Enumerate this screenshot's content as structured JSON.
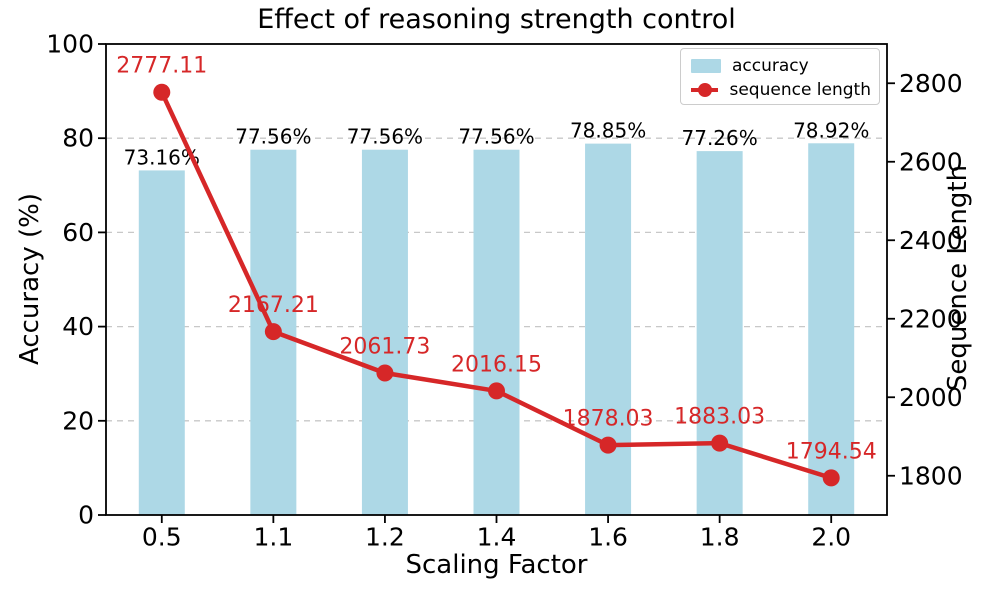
{
  "chart_data": {
    "type": "bar+line",
    "title": "Effect of reasoning strength control",
    "xlabel": "Scaling Factor",
    "ylabel_left": "Accuracy (%)",
    "ylabel_right": "Sequence Length",
    "categories": [
      "0.5",
      "1.1",
      "1.2",
      "1.4",
      "1.6",
      "1.8",
      "2.0"
    ],
    "series": [
      {
        "name": "accuracy",
        "type": "bar",
        "axis": "left",
        "color": "#ADD8E6",
        "values": [
          73.16,
          77.56,
          77.56,
          77.56,
          78.85,
          77.26,
          78.92
        ],
        "labels": [
          "73.16%",
          "77.56%",
          "77.56%",
          "77.56%",
          "78.85%",
          "77.26%",
          "78.92%"
        ]
      },
      {
        "name": "sequence length",
        "type": "line",
        "axis": "right",
        "color": "#d62728",
        "values": [
          2777.11,
          2167.21,
          2061.73,
          2016.15,
          1878.03,
          1883.03,
          1794.54
        ],
        "labels": [
          "2777.11",
          "2167.21",
          "2061.73",
          "2016.15",
          "1878.03",
          "1883.03",
          "1794.54"
        ]
      }
    ],
    "left_axis": {
      "min": 0,
      "max": 100,
      "ticks": [
        "0",
        "20",
        "40",
        "60",
        "80",
        "100"
      ]
    },
    "right_axis": {
      "min": 1700,
      "max": 2900,
      "ticks": [
        "1800",
        "2000",
        "2200",
        "2400",
        "2600",
        "2800"
      ]
    },
    "grid": {
      "show": true,
      "axis": "left",
      "style": "dashed",
      "color": "#c8c8c8"
    },
    "legend": {
      "position": "upper right"
    },
    "colors": {
      "text": "#000000",
      "spine": "#000000"
    }
  }
}
